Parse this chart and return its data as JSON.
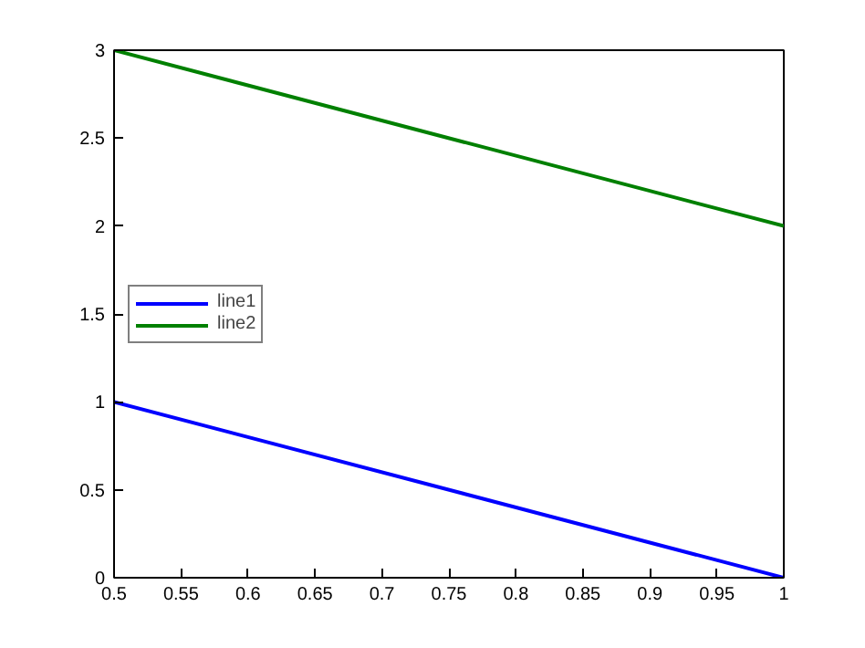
{
  "chart_data": {
    "type": "line",
    "x": [
      0.5,
      1
    ],
    "series": [
      {
        "name": "line1",
        "color": "#0000ff",
        "values": [
          1,
          0
        ]
      },
      {
        "name": "line2",
        "color": "#008000",
        "values": [
          3,
          2
        ]
      }
    ],
    "xlim": [
      0.5,
      1
    ],
    "ylim": [
      0,
      3
    ],
    "xticks": [
      0.5,
      0.55,
      0.6,
      0.65,
      0.7,
      0.75,
      0.8,
      0.85,
      0.9,
      0.95,
      1
    ],
    "yticks": [
      0,
      0.5,
      1,
      1.5,
      2,
      2.5,
      3
    ],
    "grid": false,
    "legend": "left",
    "marker": "none",
    "line_style": "solid"
  }
}
